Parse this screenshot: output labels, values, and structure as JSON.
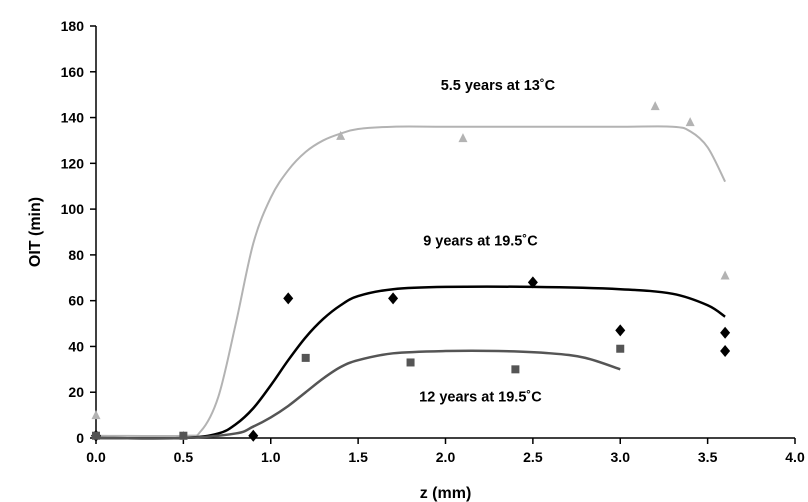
{
  "chart_data": {
    "type": "scatter",
    "xlabel": "z (mm)",
    "ylabel": "OIT (min)",
    "xlim": [
      0,
      4
    ],
    "ylim": [
      0,
      180
    ],
    "xticks": [
      "0.0",
      "0.5",
      "1.0",
      "1.5",
      "2.0",
      "2.5",
      "3.0",
      "3.5",
      "4.0"
    ],
    "yticks": [
      "0",
      "20",
      "40",
      "60",
      "80",
      "100",
      "120",
      "140",
      "160",
      "180"
    ],
    "grid": false,
    "series": [
      {
        "name": "5.5 years at 13˚C",
        "marker": "triangle",
        "color": "#b3b3b3",
        "points": [
          [
            0.0,
            10
          ],
          [
            0.5,
            1
          ],
          [
            1.4,
            132
          ],
          [
            2.1,
            131
          ],
          [
            3.2,
            145
          ],
          [
            3.4,
            138
          ],
          [
            3.6,
            71
          ]
        ],
        "fit": [
          [
            0.0,
            1
          ],
          [
            0.5,
            1
          ],
          [
            0.6,
            3
          ],
          [
            0.7,
            18
          ],
          [
            0.8,
            50
          ],
          [
            0.9,
            85
          ],
          [
            1.0,
            105
          ],
          [
            1.1,
            117
          ],
          [
            1.2,
            125
          ],
          [
            1.3,
            130
          ],
          [
            1.4,
            133
          ],
          [
            1.5,
            135
          ],
          [
            1.7,
            136
          ],
          [
            2.0,
            136
          ],
          [
            2.5,
            136
          ],
          [
            3.0,
            136
          ],
          [
            3.3,
            136
          ],
          [
            3.4,
            134
          ],
          [
            3.5,
            127
          ],
          [
            3.6,
            112
          ]
        ]
      },
      {
        "name": "9 years at 19.5˚C",
        "marker": "diamond",
        "color": "#000000",
        "points": [
          [
            0.0,
            1
          ],
          [
            0.9,
            1
          ],
          [
            1.1,
            61
          ],
          [
            1.7,
            61
          ],
          [
            2.5,
            68
          ],
          [
            3.0,
            47
          ],
          [
            3.6,
            46
          ],
          [
            3.6,
            38
          ]
        ],
        "fit": [
          [
            0.0,
            0
          ],
          [
            0.5,
            0
          ],
          [
            0.7,
            2
          ],
          [
            0.8,
            6
          ],
          [
            0.9,
            13
          ],
          [
            1.0,
            23
          ],
          [
            1.1,
            34
          ],
          [
            1.2,
            44
          ],
          [
            1.3,
            52
          ],
          [
            1.4,
            58
          ],
          [
            1.5,
            62
          ],
          [
            1.7,
            65
          ],
          [
            2.0,
            66
          ],
          [
            2.5,
            66
          ],
          [
            3.0,
            65
          ],
          [
            3.3,
            63
          ],
          [
            3.5,
            58
          ],
          [
            3.6,
            53
          ]
        ]
      },
      {
        "name": "12 years at 19.5˚C",
        "marker": "square",
        "color": "#555555",
        "points": [
          [
            0.0,
            1
          ],
          [
            0.5,
            1
          ],
          [
            1.2,
            35
          ],
          [
            1.8,
            33
          ],
          [
            2.4,
            30
          ],
          [
            3.0,
            39
          ]
        ],
        "fit": [
          [
            0.0,
            0
          ],
          [
            0.5,
            0
          ],
          [
            0.8,
            2
          ],
          [
            0.9,
            5
          ],
          [
            1.0,
            9
          ],
          [
            1.1,
            14
          ],
          [
            1.2,
            20
          ],
          [
            1.3,
            26
          ],
          [
            1.4,
            31
          ],
          [
            1.5,
            34
          ],
          [
            1.7,
            37
          ],
          [
            2.0,
            38
          ],
          [
            2.3,
            38
          ],
          [
            2.6,
            37
          ],
          [
            2.8,
            35
          ],
          [
            3.0,
            30
          ]
        ]
      }
    ],
    "annotations": [
      {
        "text": "5.5 years at 13˚C",
        "x": 2.3,
        "y": 152
      },
      {
        "text": "9 years at 19.5˚C",
        "x": 2.2,
        "y": 84
      },
      {
        "text": "12 years at 19.5˚C",
        "x": 2.2,
        "y": 16
      }
    ]
  }
}
